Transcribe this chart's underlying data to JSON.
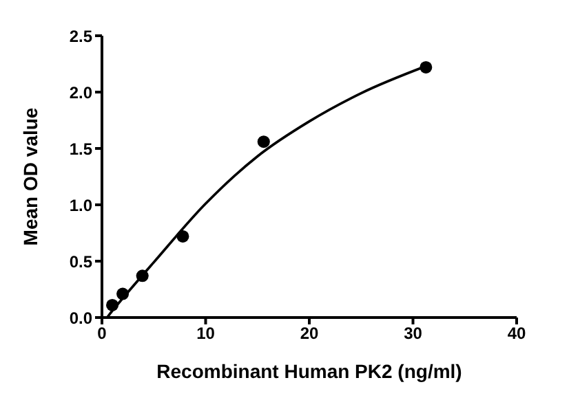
{
  "chart_data": {
    "type": "scatter",
    "xlabel": "Recombinant Human PK2 (ng/ml)",
    "ylabel": "Mean OD value",
    "xlim": [
      0,
      40
    ],
    "xticks": [
      0,
      10,
      20,
      30,
      40
    ],
    "ylim": [
      0,
      2.5
    ],
    "yticks": [
      {
        "value": 0,
        "label": "0.0"
      },
      {
        "value": 0.5,
        "label": "0.5"
      },
      {
        "value": 1,
        "label": "1.0"
      },
      {
        "value": 1.5,
        "label": "1.5"
      },
      {
        "value": 2,
        "label": "2.0"
      },
      {
        "value": 2.5,
        "label": "2.5"
      }
    ],
    "grid": false,
    "marker": "circle",
    "series": [
      {
        "color": "#000000",
        "x": [
          1,
          2,
          3.9,
          7.8,
          15.6,
          31.25
        ],
        "values": [
          0.11,
          0.21,
          0.37,
          0.72,
          1.56,
          2.22
        ]
      },
      {
        "type": "line",
        "color": "#000000",
        "marker": "none",
        "line_style": "solid",
        "x": [
          0.5,
          1,
          2,
          5,
          10,
          15,
          20,
          25,
          31.25
        ],
        "values": [
          0,
          0.06,
          0.17,
          0.49,
          1.01,
          1.43,
          1.74,
          1.99,
          2.23
        ]
      }
    ]
  }
}
